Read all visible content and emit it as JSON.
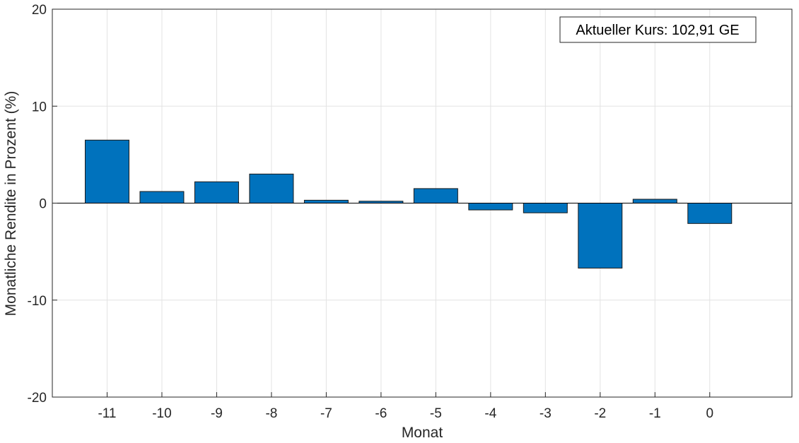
{
  "chart_data": {
    "type": "bar",
    "categories": [
      "-11",
      "-10",
      "-9",
      "-8",
      "-7",
      "-6",
      "-5",
      "-4",
      "-3",
      "-2",
      "-1",
      "0"
    ],
    "values": [
      6.5,
      1.2,
      2.2,
      3.0,
      0.3,
      0.2,
      1.5,
      -0.7,
      -1.0,
      -6.7,
      0.4,
      -2.1
    ],
    "xlabel": "Monat",
    "ylabel": "Monatliche Rendite in Prozent (%)",
    "ylim": [
      -20,
      20
    ],
    "yticks": [
      -20,
      -10,
      0,
      10,
      20
    ],
    "grid": true,
    "bar_color": "#0072BD",
    "annotation": "Aktueller Kurs: 102,91 GE"
  }
}
